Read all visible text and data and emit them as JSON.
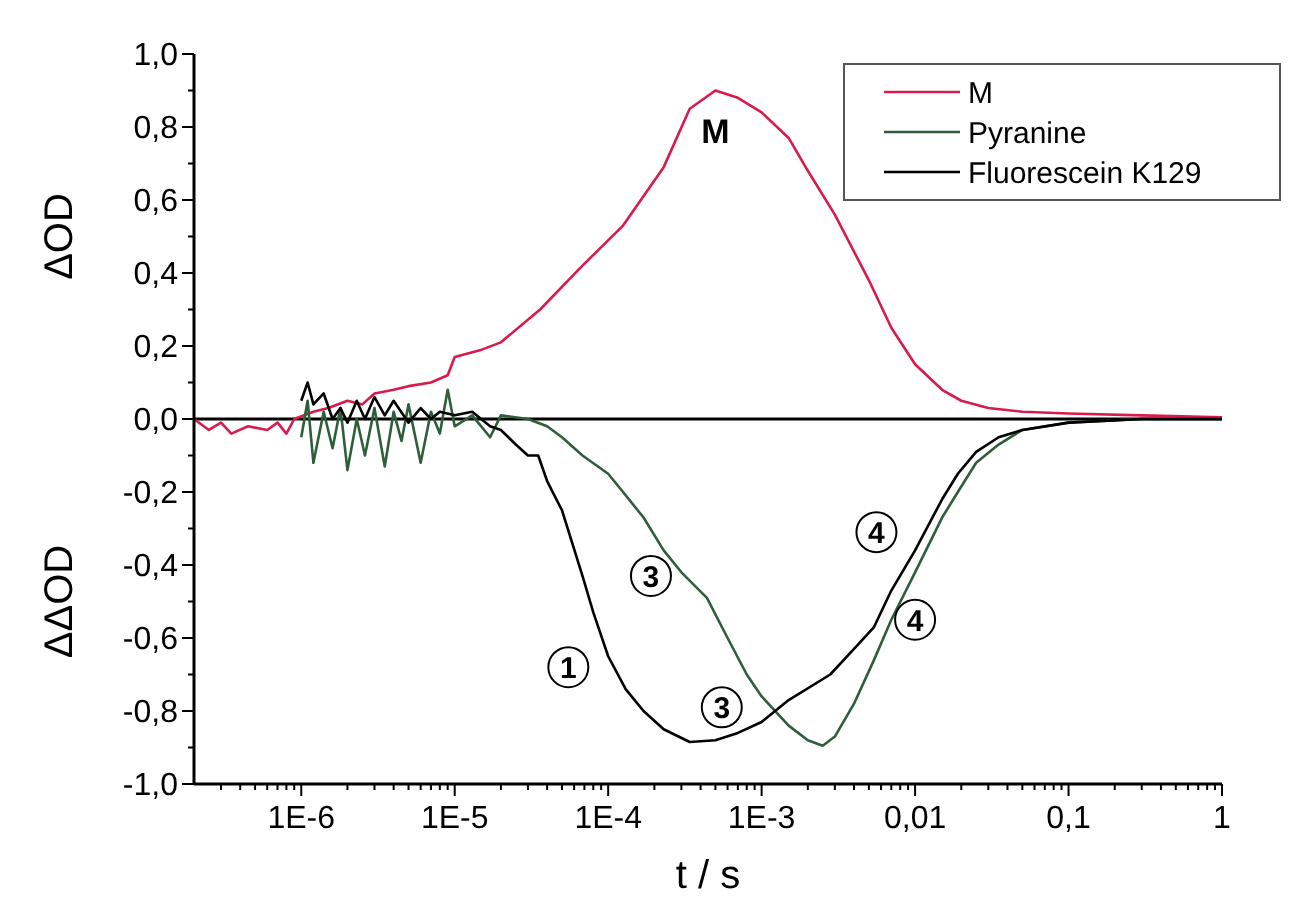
{
  "chart_data": {
    "type": "line",
    "xlabel": "t / s",
    "ylabel": "ΔOD",
    "log": "x",
    "xlim": [
      2e-07,
      1
    ],
    "ylim": [
      -1,
      1
    ],
    "legend": "top right",
    "grid": false,
    "xticks": [
      {
        "value": 3e-07,
        "label": null
      },
      {
        "value": 4e-07,
        "label": null
      },
      {
        "value": 5e-07,
        "label": null
      },
      {
        "value": 6e-07,
        "label": null
      },
      {
        "value": 7e-07,
        "label": null
      },
      {
        "value": 8e-07,
        "label": null
      },
      {
        "value": 9e-07,
        "label": null
      },
      {
        "value": 1e-06,
        "label": "1E-6"
      },
      {
        "value": 2e-06,
        "label": null
      },
      {
        "value": 3e-06,
        "label": null
      },
      {
        "value": 4e-06,
        "label": null
      },
      {
        "value": 5e-06,
        "label": null
      },
      {
        "value": 6e-06,
        "label": null
      },
      {
        "value": 7e-06,
        "label": null
      },
      {
        "value": 8e-06,
        "label": null
      },
      {
        "value": 9e-06,
        "label": null
      },
      {
        "value": 1e-05,
        "label": "1E-5"
      },
      {
        "value": 2e-05,
        "label": null
      },
      {
        "value": 3e-05,
        "label": null
      },
      {
        "value": 4e-05,
        "label": null
      },
      {
        "value": 5e-05,
        "label": null
      },
      {
        "value": 6e-05,
        "label": null
      },
      {
        "value": 7e-05,
        "label": null
      },
      {
        "value": 8e-05,
        "label": null
      },
      {
        "value": 9e-05,
        "label": null
      },
      {
        "value": 0.0001,
        "label": "1E-4"
      },
      {
        "value": 0.0002,
        "label": null
      },
      {
        "value": 0.0003,
        "label": null
      },
      {
        "value": 0.0004,
        "label": null
      },
      {
        "value": 0.0005,
        "label": null
      },
      {
        "value": 0.0006,
        "label": null
      },
      {
        "value": 0.0007,
        "label": null
      },
      {
        "value": 0.0008,
        "label": null
      },
      {
        "value": 0.0009,
        "label": null
      },
      {
        "value": 0.001,
        "label": "1E-3"
      },
      {
        "value": 0.002,
        "label": null
      },
      {
        "value": 0.003,
        "label": null
      },
      {
        "value": 0.004,
        "label": null
      },
      {
        "value": 0.005,
        "label": null
      },
      {
        "value": 0.006,
        "label": null
      },
      {
        "value": 0.007,
        "label": null
      },
      {
        "value": 0.008,
        "label": null
      },
      {
        "value": 0.009,
        "label": null
      },
      {
        "value": 0.01,
        "label": "0,01"
      },
      {
        "value": 0.02,
        "label": null
      },
      {
        "value": 0.03,
        "label": null
      },
      {
        "value": 0.04,
        "label": null
      },
      {
        "value": 0.05,
        "label": null
      },
      {
        "value": 0.06,
        "label": null
      },
      {
        "value": 0.07,
        "label": null
      },
      {
        "value": 0.08,
        "label": null
      },
      {
        "value": 0.09,
        "label": null
      },
      {
        "value": 0.1,
        "label": "0,1"
      },
      {
        "value": 0.2,
        "label": null
      },
      {
        "value": 0.3,
        "label": null
      },
      {
        "value": 0.4,
        "label": null
      },
      {
        "value": 0.5,
        "label": null
      },
      {
        "value": 0.6,
        "label": null
      },
      {
        "value": 0.7,
        "label": null
      },
      {
        "value": 0.8,
        "label": null
      },
      {
        "value": 0.9,
        "label": null
      },
      {
        "value": 1,
        "label": "1"
      }
    ],
    "yticks": [
      {
        "value": -1,
        "label": "-1,0"
      },
      {
        "value": -0.9,
        "label": null
      },
      {
        "value": -0.8,
        "label": "-0,8"
      },
      {
        "value": -0.7,
        "label": null
      },
      {
        "value": -0.6,
        "label": "-0,6"
      },
      {
        "value": -0.5,
        "label": null
      },
      {
        "value": -0.4,
        "label": "-0,4"
      },
      {
        "value": -0.3,
        "label": null
      },
      {
        "value": -0.2,
        "label": "-0,2"
      },
      {
        "value": -0.1,
        "label": null
      },
      {
        "value": 0,
        "label": "0,0"
      },
      {
        "value": 0.1,
        "label": null
      },
      {
        "value": 0.2,
        "label": "0,2"
      },
      {
        "value": 0.3,
        "label": null
      },
      {
        "value": 0.4,
        "label": "0,4"
      },
      {
        "value": 0.5,
        "label": null
      },
      {
        "value": 0.6,
        "label": "0,6"
      },
      {
        "value": 0.7,
        "label": null
      },
      {
        "value": 0.8,
        "label": "0,8"
      },
      {
        "value": 0.9,
        "label": null
      },
      {
        "value": 1,
        "label": "1,0"
      }
    ],
    "ref_lines": [
      {
        "axis": "y",
        "value": 0,
        "color": "#000000"
      }
    ],
    "annotations": [
      "ΔΔOD",
      "M",
      {
        "text": "1",
        "x": 5.5e-05,
        "y": -0.68
      },
      {
        "text": "3",
        "x": 0.00019,
        "y": -0.43
      },
      {
        "text": "3",
        "x": 0.00055,
        "y": -0.79
      },
      {
        "text": "4",
        "x": 0.0056,
        "y": -0.31
      },
      {
        "text": "4",
        "x": 0.01,
        "y": -0.55
      }
    ],
    "series": [
      {
        "name": "M",
        "color": "#d81b4a",
        "x": [
          2e-07,
          2.5e-07,
          3e-07,
          3.5e-07,
          4.5e-07,
          6e-07,
          7e-07,
          8e-07,
          9e-07,
          1.2e-06,
          1.5e-06,
          2e-06,
          2.5e-06,
          3e-06,
          4e-06,
          5e-06,
          7e-06,
          9e-06,
          1e-05,
          1.5e-05,
          2e-05,
          3.6e-05,
          6.8e-05,
          0.000125,
          0.00023,
          0.00034,
          0.0005,
          0.0007,
          0.001,
          0.0015,
          0.002,
          0.003,
          0.005,
          0.007,
          0.01,
          0.015,
          0.02,
          0.03,
          0.05,
          0.1,
          0.3,
          1
        ],
        "values": [
          0,
          -0.03,
          -0.01,
          -0.04,
          -0.02,
          -0.03,
          -0.01,
          -0.04,
          0,
          0.02,
          0.03,
          0.05,
          0.04,
          0.07,
          0.08,
          0.09,
          0.1,
          0.12,
          0.17,
          0.19,
          0.21,
          0.3,
          0.42,
          0.53,
          0.69,
          0.85,
          0.9,
          0.88,
          0.84,
          0.77,
          0.68,
          0.56,
          0.38,
          0.25,
          0.15,
          0.08,
          0.05,
          0.03,
          0.02,
          0.015,
          0.01,
          0.005
        ]
      },
      {
        "name": "Pyranine",
        "color": "#2e5e3a",
        "x": [
          1e-06,
          1.1e-06,
          1.2e-06,
          1.4e-06,
          1.6e-06,
          1.8e-06,
          2e-06,
          2.3e-06,
          2.6e-06,
          3e-06,
          3.5e-06,
          4e-06,
          4.5e-06,
          5e-06,
          6e-06,
          7e-06,
          8e-06,
          9e-06,
          1e-05,
          1.3e-05,
          1.7e-05,
          2e-05,
          3e-05,
          4e-05,
          5e-05,
          6.8e-05,
          0.0001,
          0.000125,
          0.00017,
          0.00023,
          0.0003,
          0.00044,
          0.0006,
          0.0008,
          0.001,
          0.0015,
          0.002,
          0.0025,
          0.003,
          0.004,
          0.0054,
          0.007,
          0.01,
          0.015,
          0.019,
          0.025,
          0.035,
          0.05,
          0.1,
          0.3,
          1
        ],
        "values": [
          -0.05,
          0.05,
          -0.12,
          0.02,
          -0.08,
          0.03,
          -0.14,
          0,
          -0.1,
          0.03,
          -0.13,
          0.02,
          -0.06,
          0.04,
          -0.12,
          0.02,
          -0.04,
          0.08,
          -0.02,
          0.01,
          -0.05,
          0.01,
          0,
          -0.02,
          -0.05,
          -0.1,
          -0.15,
          -0.2,
          -0.27,
          -0.36,
          -0.42,
          -0.49,
          -0.6,
          -0.7,
          -0.76,
          -0.84,
          -0.88,
          -0.895,
          -0.87,
          -0.78,
          -0.66,
          -0.55,
          -0.42,
          -0.27,
          -0.2,
          -0.12,
          -0.07,
          -0.03,
          -0.01,
          0,
          0
        ]
      },
      {
        "name": "Fluorescein K129",
        "color": "#000000",
        "x": [
          1e-06,
          1.1e-06,
          1.2e-06,
          1.4e-06,
          1.6e-06,
          1.8e-06,
          2e-06,
          2.3e-06,
          2.6e-06,
          3e-06,
          3.5e-06,
          4e-06,
          5e-06,
          6e-06,
          7e-06,
          8e-06,
          1e-05,
          1.3e-05,
          1.7e-05,
          2e-05,
          2.5e-05,
          3e-05,
          3.5e-05,
          4e-05,
          5e-05,
          6.8e-05,
          8e-05,
          0.0001,
          0.00013,
          0.00017,
          0.00023,
          0.00034,
          0.0005,
          0.0007,
          0.001,
          0.0015,
          0.0028,
          0.004,
          0.0054,
          0.007,
          0.01,
          0.015,
          0.019,
          0.025,
          0.035,
          0.05,
          0.1,
          0.3,
          1
        ],
        "values": [
          0.05,
          0.1,
          0.04,
          0.07,
          0,
          0.03,
          -0.01,
          0.05,
          0,
          0.06,
          0.01,
          0.05,
          -0.01,
          0.03,
          0,
          0.02,
          0.01,
          0.02,
          -0.02,
          -0.03,
          -0.07,
          -0.1,
          -0.1,
          -0.17,
          -0.25,
          -0.43,
          -0.53,
          -0.65,
          -0.74,
          -0.8,
          -0.85,
          -0.885,
          -0.88,
          -0.86,
          -0.83,
          -0.77,
          -0.7,
          -0.63,
          -0.57,
          -0.47,
          -0.36,
          -0.22,
          -0.15,
          -0.09,
          -0.05,
          -0.03,
          -0.01,
          0,
          0
        ]
      }
    ]
  }
}
